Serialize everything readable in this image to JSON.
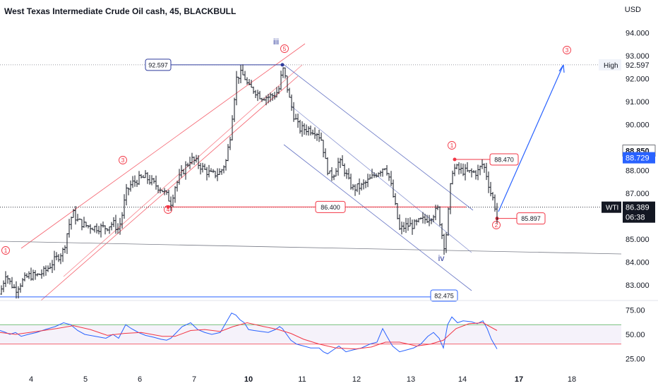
{
  "header": {
    "title": "West Texas Intermediate Crude Oil cash, 45, BLACKBULL",
    "currency": "USD"
  },
  "colors": {
    "up": "#131722",
    "down": "#131722",
    "rsi": "#2962ff",
    "rsi_ma": "#f23645",
    "channel_red": "#f23645",
    "channel_blue": "#3f51b5",
    "wave_red": "#f23645",
    "wave_blue": "#2e3b9c"
  },
  "chart_data": [
    {
      "type": "ohlc",
      "symbol": "WTI",
      "yticks": [
        "94.000",
        "93.000",
        "92.000",
        "91.000",
        "90.000",
        "89.000",
        "88.000",
        "87.000",
        "86.000",
        "85.000",
        "84.000",
        "83.000"
      ],
      "xticks": [
        "4",
        "5",
        "6",
        "7",
        "10",
        "11",
        "12",
        "13",
        "14",
        "17",
        "18"
      ],
      "ylim": [
        82.35,
        94.5
      ],
      "price_labels": {
        "high_label": "High",
        "high_value": "92.597",
        "p1": "88.850",
        "p2": "88.729",
        "symbol": "WTI",
        "last": "86.389",
        "countdown": "06:38"
      },
      "levels": [
        "92.597",
        "86.400",
        "82.475",
        "88.470",
        "85.897"
      ],
      "wave_labels": {
        "w1": "1",
        "w3": "3",
        "w4": "4",
        "w5": "5",
        "wiii": "iii",
        "wiv": "iv",
        "n1": "1",
        "n2": "2",
        "n3": "3"
      },
      "path": [
        [
          0,
          82.6
        ],
        [
          8,
          83.5
        ],
        [
          14,
          83.1
        ],
        [
          22,
          82.8
        ],
        [
          30,
          83.1
        ],
        [
          40,
          83.4
        ],
        [
          52,
          83.4
        ],
        [
          64,
          83.6
        ],
        [
          78,
          84.1
        ],
        [
          90,
          84.5
        ],
        [
          96,
          85.4
        ],
        [
          100,
          85.9
        ],
        [
          104,
          86.1
        ],
        [
          110,
          85.8
        ],
        [
          120,
          85.6
        ],
        [
          135,
          85.5
        ],
        [
          150,
          85.5
        ],
        [
          160,
          85.7
        ],
        [
          168,
          85.4
        ],
        [
          174,
          86.2
        ],
        [
          178,
          87.0
        ],
        [
          186,
          87.4
        ],
        [
          196,
          87.6
        ],
        [
          206,
          87.7
        ],
        [
          218,
          87.4
        ],
        [
          228,
          87.2
        ],
        [
          236,
          86.9
        ],
        [
          242,
          86.6
        ],
        [
          248,
          87.3
        ],
        [
          258,
          87.9
        ],
        [
          270,
          88.5
        ],
        [
          280,
          88.3
        ],
        [
          290,
          88.0
        ],
        [
          300,
          87.8
        ],
        [
          312,
          87.9
        ],
        [
          320,
          88.4
        ],
        [
          326,
          89.5
        ],
        [
          330,
          90.7
        ],
        [
          335,
          92.0
        ],
        [
          340,
          92.2
        ],
        [
          346,
          92.1
        ],
        [
          352,
          91.6
        ],
        [
          360,
          91.5
        ],
        [
          370,
          91.2
        ],
        [
          380,
          91.2
        ],
        [
          390,
          91.3
        ],
        [
          396,
          91.6
        ],
        [
          400,
          92.5
        ],
        [
          405,
          91.9
        ],
        [
          410,
          91.1
        ],
        [
          416,
          90.4
        ],
        [
          424,
          89.8
        ],
        [
          436,
          89.8
        ],
        [
          448,
          89.7
        ],
        [
          456,
          89.3
        ],
        [
          460,
          88.5
        ],
        [
          466,
          87.8
        ],
        [
          472,
          87.8
        ],
        [
          480,
          88.4
        ],
        [
          488,
          88.0
        ],
        [
          494,
          87.5
        ],
        [
          500,
          87.2
        ],
        [
          512,
          87.3
        ],
        [
          524,
          87.6
        ],
        [
          534,
          87.9
        ],
        [
          546,
          88.2
        ],
        [
          552,
          87.6
        ],
        [
          560,
          86.4
        ],
        [
          566,
          85.4
        ],
        [
          576,
          85.6
        ],
        [
          586,
          85.6
        ],
        [
          596,
          85.8
        ],
        [
          606,
          85.9
        ],
        [
          614,
          86.1
        ],
        [
          620,
          86.3
        ],
        [
          626,
          85.2
        ],
        [
          630,
          84.6
        ],
        [
          636,
          86.5
        ],
        [
          640,
          88.0
        ],
        [
          646,
          88.1
        ],
        [
          652,
          88.0
        ],
        [
          664,
          87.9
        ],
        [
          676,
          87.9
        ],
        [
          684,
          88.3
        ],
        [
          690,
          87.7
        ],
        [
          694,
          87.1
        ],
        [
          700,
          86.6
        ],
        [
          704,
          85.9
        ]
      ],
      "rsi_yticks": [
        "75.00",
        "50.00",
        "25.00"
      ],
      "rsi_levels": {
        "upper": 60,
        "lower": 40
      },
      "rsi_lim": [
        18,
        82
      ],
      "rsi": [
        [
          0,
          54
        ],
        [
          8,
          52
        ],
        [
          14,
          50
        ],
        [
          22,
          52
        ],
        [
          30,
          48
        ],
        [
          40,
          50
        ],
        [
          52,
          52
        ],
        [
          64,
          55
        ],
        [
          78,
          58
        ],
        [
          90,
          62
        ],
        [
          100,
          60
        ],
        [
          110,
          54
        ],
        [
          120,
          50
        ],
        [
          135,
          48
        ],
        [
          150,
          46
        ],
        [
          160,
          50
        ],
        [
          168,
          46
        ],
        [
          178,
          60
        ],
        [
          186,
          56
        ],
        [
          196,
          52
        ],
        [
          206,
          49
        ],
        [
          218,
          47
        ],
        [
          228,
          45
        ],
        [
          236,
          44
        ],
        [
          242,
          46
        ],
        [
          250,
          52
        ],
        [
          258,
          58
        ],
        [
          270,
          62
        ],
        [
          280,
          55
        ],
        [
          290,
          52
        ],
        [
          300,
          50
        ],
        [
          312,
          52
        ],
        [
          320,
          62
        ],
        [
          328,
          72
        ],
        [
          334,
          70
        ],
        [
          340,
          65
        ],
        [
          346,
          62
        ],
        [
          352,
          55
        ],
        [
          360,
          54
        ],
        [
          370,
          53
        ],
        [
          380,
          52
        ],
        [
          390,
          55
        ],
        [
          396,
          58
        ],
        [
          400,
          56
        ],
        [
          406,
          50
        ],
        [
          412,
          44
        ],
        [
          420,
          40
        ],
        [
          430,
          38
        ],
        [
          440,
          36
        ],
        [
          452,
          36
        ],
        [
          458,
          32
        ],
        [
          464,
          30
        ],
        [
          472,
          34
        ],
        [
          480,
          38
        ],
        [
          490,
          32
        ],
        [
          500,
          34
        ],
        [
          512,
          36
        ],
        [
          524,
          40
        ],
        [
          534,
          42
        ],
        [
          542,
          56
        ],
        [
          548,
          48
        ],
        [
          556,
          38
        ],
        [
          566,
          32
        ],
        [
          576,
          34
        ],
        [
          586,
          36
        ],
        [
          596,
          40
        ],
        [
          606,
          48
        ],
        [
          614,
          52
        ],
        [
          622,
          46
        ],
        [
          628,
          36
        ],
        [
          634,
          60
        ],
        [
          640,
          68
        ],
        [
          648,
          62
        ],
        [
          656,
          64
        ],
        [
          668,
          63
        ],
        [
          676,
          61
        ],
        [
          684,
          64
        ],
        [
          690,
          56
        ],
        [
          696,
          45
        ],
        [
          704,
          35
        ]
      ],
      "rsi_ma": [
        [
          0,
          52
        ],
        [
          22,
          50
        ],
        [
          52,
          53
        ],
        [
          80,
          56
        ],
        [
          104,
          59
        ],
        [
          128,
          55
        ],
        [
          152,
          49
        ],
        [
          176,
          51
        ],
        [
          200,
          52
        ],
        [
          230,
          48
        ],
        [
          248,
          48
        ],
        [
          270,
          54
        ],
        [
          290,
          55
        ],
        [
          312,
          53
        ],
        [
          330,
          58
        ],
        [
          350,
          62
        ],
        [
          374,
          58
        ],
        [
          394,
          55
        ],
        [
          412,
          51
        ],
        [
          430,
          45
        ],
        [
          452,
          40
        ],
        [
          476,
          36
        ],
        [
          504,
          35
        ],
        [
          526,
          37
        ],
        [
          546,
          42
        ],
        [
          566,
          42
        ],
        [
          590,
          38
        ],
        [
          610,
          40
        ],
        [
          628,
          44
        ],
        [
          646,
          56
        ],
        [
          664,
          61
        ],
        [
          684,
          62
        ],
        [
          704,
          54
        ]
      ]
    }
  ]
}
